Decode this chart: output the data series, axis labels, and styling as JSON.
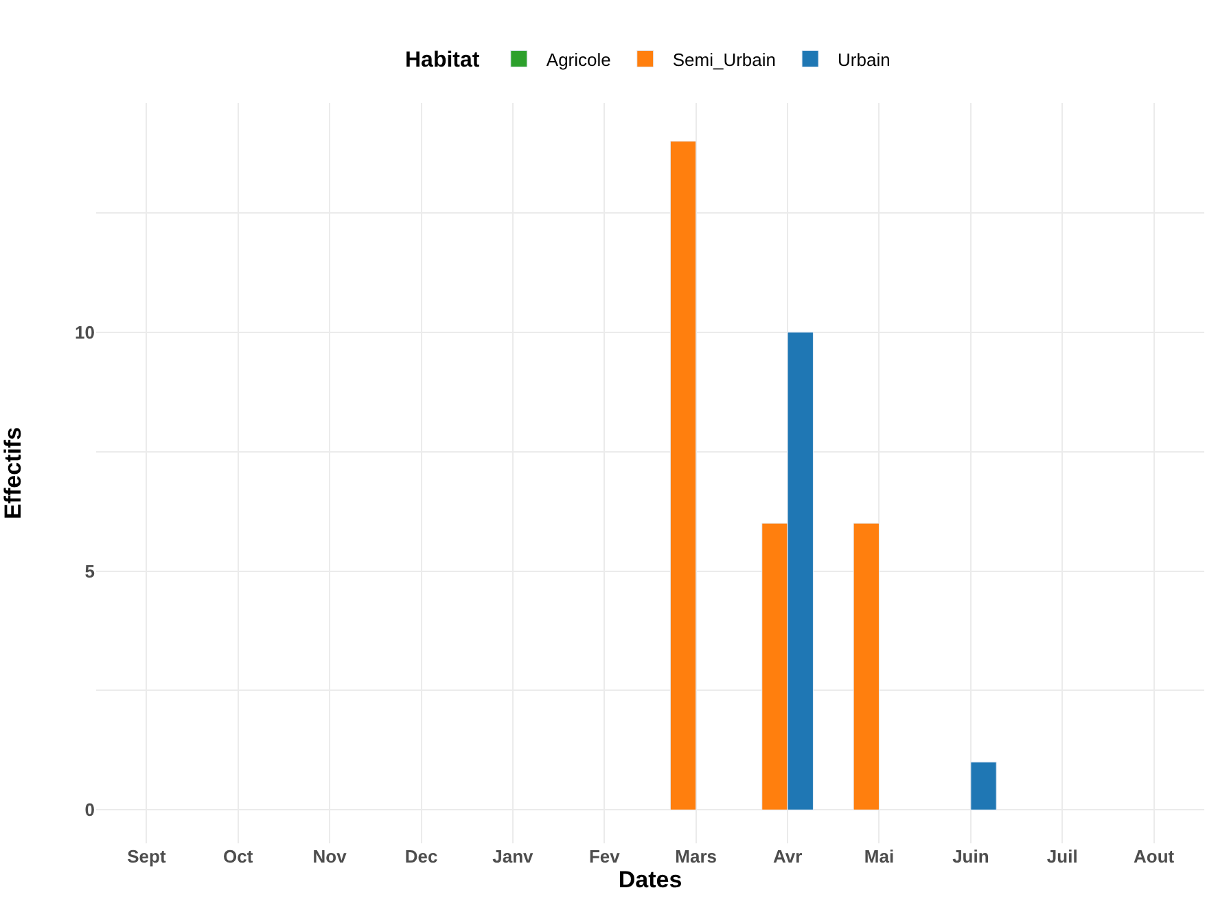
{
  "chart_data": {
    "type": "bar",
    "xlabel": "Dates",
    "ylabel": "Effectifs",
    "legend_title": "Habitat",
    "categories": [
      "Sept",
      "Oct",
      "Nov",
      "Dec",
      "Janv",
      "Fev",
      "Mars",
      "Avr",
      "Mai",
      "Juin",
      "Juil",
      "Aout"
    ],
    "series": [
      {
        "name": "Agricole",
        "color": "#2ca02c",
        "values": [
          null,
          null,
          null,
          null,
          null,
          null,
          null,
          null,
          null,
          null,
          null,
          null
        ]
      },
      {
        "name": "Semi_Urbain",
        "color": "#ff7f0e",
        "values": [
          null,
          null,
          null,
          null,
          null,
          null,
          14,
          6,
          6,
          null,
          null,
          null
        ]
      },
      {
        "name": "Urbain",
        "color": "#1f77b4",
        "values": [
          null,
          null,
          null,
          null,
          null,
          null,
          null,
          10,
          null,
          1,
          null,
          null
        ]
      }
    ],
    "ylim": [
      -0.7,
      14.8
    ],
    "yticks": [
      0,
      {
        "value": 2.5,
        "label": null
      },
      5,
      {
        "value": 7.5,
        "label": null
      },
      10,
      {
        "value": 12.5,
        "label": null
      }
    ],
    "grid": true,
    "legend": "top"
  }
}
